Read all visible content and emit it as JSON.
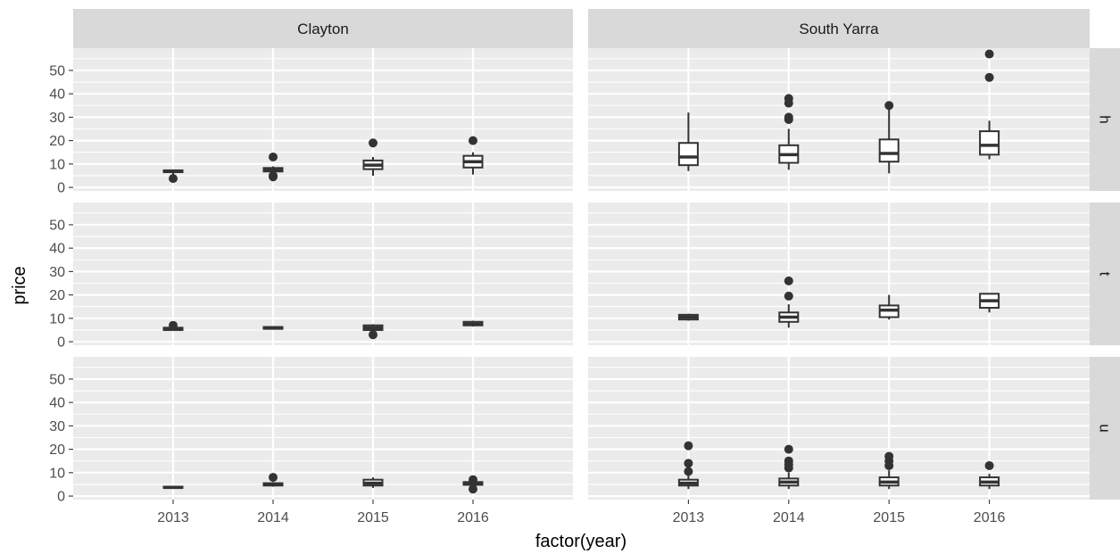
{
  "chart_data": {
    "type": "boxplot",
    "xlabel": "factor(year)",
    "ylabel": "price",
    "x_categories": [
      "2013",
      "2014",
      "2015",
      "2016"
    ],
    "y_ticks": [
      0,
      10,
      20,
      30,
      40,
      50
    ],
    "ylim": [
      -1.5,
      59.5
    ],
    "grid": true,
    "facet_cols": [
      "Clayton",
      "South Yarra"
    ],
    "facet_rows": [
      "h",
      "t",
      "u"
    ],
    "panels": [
      {
        "col": "Clayton",
        "row": "h",
        "boxes": [
          {
            "x": "2013",
            "lower": 5.5,
            "q1": 6.5,
            "median": 7.0,
            "q3": 7.3,
            "upper": 7.5,
            "outliers": [
              3.8
            ]
          },
          {
            "x": "2014",
            "lower": 5.5,
            "q1": 6.8,
            "median": 7.5,
            "q3": 8.3,
            "upper": 9.0,
            "outliers": [
              4.5,
              5.0,
              13.0
            ]
          },
          {
            "x": "2015",
            "lower": 5.0,
            "q1": 7.8,
            "median": 9.5,
            "q3": 11.5,
            "upper": 13.0,
            "outliers": [
              19.0
            ]
          },
          {
            "x": "2016",
            "lower": 5.5,
            "q1": 8.5,
            "median": 11.0,
            "q3": 13.5,
            "upper": 15.0,
            "outliers": [
              20.0
            ]
          }
        ]
      },
      {
        "col": "South Yarra",
        "row": "h",
        "boxes": [
          {
            "x": "2013",
            "lower": 7.0,
            "q1": 9.5,
            "median": 13.0,
            "q3": 19.0,
            "upper": 32.0,
            "outliers": []
          },
          {
            "x": "2014",
            "lower": 7.5,
            "q1": 10.5,
            "median": 14.0,
            "q3": 18.0,
            "upper": 25.0,
            "outliers": [
              29.0,
              30.0,
              36.0,
              38.0
            ]
          },
          {
            "x": "2015",
            "lower": 6.0,
            "q1": 11.0,
            "median": 14.5,
            "q3": 20.5,
            "upper": 34.0,
            "outliers": [
              35.0
            ]
          },
          {
            "x": "2016",
            "lower": 12.0,
            "q1": 14.0,
            "median": 18.0,
            "q3": 24.0,
            "upper": 28.5,
            "outliers": [
              47.0,
              57.0
            ]
          }
        ]
      },
      {
        "col": "Clayton",
        "row": "t",
        "boxes": [
          {
            "x": "2013",
            "lower": 5.0,
            "q1": 5.0,
            "median": 5.5,
            "q3": 6.0,
            "upper": 6.5,
            "outliers": [
              7.0
            ]
          },
          {
            "x": "2014",
            "lower": 5.5,
            "q1": 5.5,
            "median": 6.0,
            "q3": 6.3,
            "upper": 6.5,
            "outliers": []
          },
          {
            "x": "2015",
            "lower": 4.5,
            "q1": 5.0,
            "median": 6.0,
            "q3": 7.0,
            "upper": 7.5,
            "outliers": [
              3.0
            ]
          },
          {
            "x": "2016",
            "lower": 6.5,
            "q1": 7.0,
            "median": 7.5,
            "q3": 8.5,
            "upper": 9.0,
            "outliers": []
          }
        ]
      },
      {
        "col": "South Yarra",
        "row": "t",
        "boxes": [
          {
            "x": "2013",
            "lower": 9.0,
            "q1": 9.5,
            "median": 10.5,
            "q3": 11.5,
            "upper": 12.0,
            "outliers": []
          },
          {
            "x": "2014",
            "lower": 6.0,
            "q1": 8.5,
            "median": 10.5,
            "q3": 12.5,
            "upper": 16.0,
            "outliers": [
              19.5,
              26.0
            ]
          },
          {
            "x": "2015",
            "lower": 9.5,
            "q1": 10.5,
            "median": 13.5,
            "q3": 15.5,
            "upper": 20.0,
            "outliers": []
          },
          {
            "x": "2016",
            "lower": 12.5,
            "q1": 14.5,
            "median": 17.5,
            "q3": 20.5,
            "upper": 20.5,
            "outliers": []
          }
        ]
      },
      {
        "col": "Clayton",
        "row": "u",
        "boxes": [
          {
            "x": "2013",
            "lower": 3.2,
            "q1": 3.5,
            "median": 3.7,
            "q3": 4.0,
            "upper": 4.2,
            "outliers": []
          },
          {
            "x": "2014",
            "lower": 4.0,
            "q1": 4.5,
            "median": 5.0,
            "q3": 5.5,
            "upper": 6.0,
            "outliers": [
              8.0
            ]
          },
          {
            "x": "2015",
            "lower": 3.5,
            "q1": 4.5,
            "median": 5.5,
            "q3": 7.0,
            "upper": 8.0,
            "outliers": []
          },
          {
            "x": "2016",
            "lower": 4.0,
            "q1": 4.8,
            "median": 5.5,
            "q3": 6.0,
            "upper": 6.5,
            "outliers": [
              3.0,
              7.0
            ]
          }
        ]
      },
      {
        "col": "South Yarra",
        "row": "u",
        "boxes": [
          {
            "x": "2013",
            "lower": 3.0,
            "q1": 4.5,
            "median": 5.5,
            "q3": 7.0,
            "upper": 9.0,
            "outliers": [
              10.5,
              14.0,
              21.5
            ]
          },
          {
            "x": "2014",
            "lower": 3.0,
            "q1": 4.5,
            "median": 6.0,
            "q3": 7.5,
            "upper": 10.0,
            "outliers": [
              12.0,
              13.5,
              15.0,
              20.0
            ]
          },
          {
            "x": "2015",
            "lower": 3.0,
            "q1": 4.5,
            "median": 6.0,
            "q3": 8.0,
            "upper": 11.0,
            "outliers": [
              13.0,
              15.0,
              17.0
            ]
          },
          {
            "x": "2016",
            "lower": 3.0,
            "q1": 4.5,
            "median": 6.0,
            "q3": 8.0,
            "upper": 9.5,
            "outliers": [
              13.0
            ]
          }
        ]
      }
    ]
  }
}
